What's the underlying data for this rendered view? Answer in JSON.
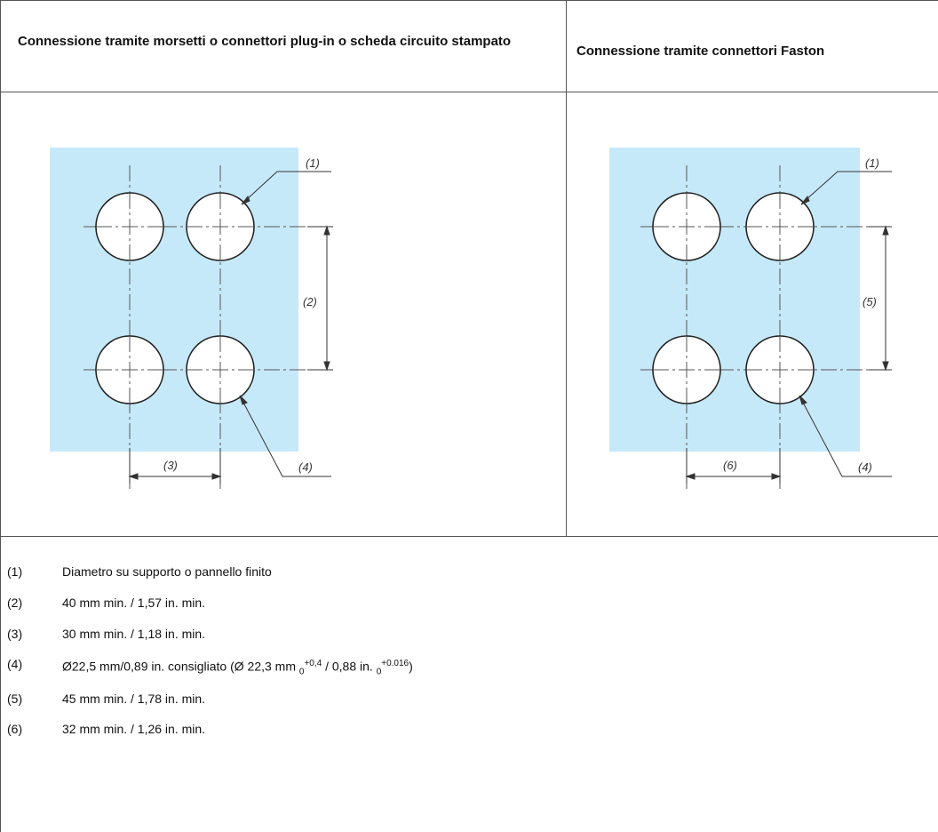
{
  "header": {
    "col1": "Connessione tramite morsetti o connettori plug-in o scheda circuito stampato",
    "col2": "Connessione tramite connettori Faston"
  },
  "diagram_left": {
    "callouts": [
      "(1)",
      "(2)",
      "(3)",
      "(4)"
    ],
    "panel_color": "#c6e9f9"
  },
  "diagram_right": {
    "callouts": [
      "(1)",
      "(5)",
      "(6)",
      "(4)"
    ],
    "panel_color": "#c6e9f9"
  },
  "notes": [
    {
      "num": "(1)",
      "text": "Diametro su supporto o pannello finito"
    },
    {
      "num": "(2)",
      "text": "40 mm min. / 1,57 in. min."
    },
    {
      "num": "(3)",
      "text": "30 mm min. / 1,18 in. min."
    },
    {
      "num": "(4)",
      "text_a": "Ø22,5 mm/0,89 in. consigliato (Ø 22,3 mm ",
      "sub1": "0",
      "sup1": "+0,4",
      "text_b": " / 0,88 in. ",
      "sub2": "0",
      "sup2": "+0.016",
      "text_c": ")"
    },
    {
      "num": "(5)",
      "text": "45 mm min. / 1,78 in. min."
    },
    {
      "num": "(6)",
      "text": "32 mm min. / 1,26 in. min."
    }
  ]
}
